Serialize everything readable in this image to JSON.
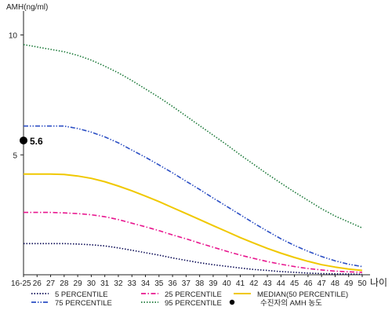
{
  "chart_data": {
    "type": "line",
    "ylabel": "AMH(ng/ml)",
    "xlabel": "나이",
    "ylim": [
      0,
      11
    ],
    "yticks": [
      5,
      10
    ],
    "categories": [
      "16-25",
      "26",
      "27",
      "28",
      "29",
      "30",
      "31",
      "32",
      "33",
      "34",
      "35",
      "36",
      "37",
      "38",
      "39",
      "40",
      "41",
      "42",
      "43",
      "44",
      "45",
      "46",
      "47",
      "48",
      "49",
      "50"
    ],
    "series": [
      {
        "name": "5 PERCENTILE",
        "color": "#0a0a55",
        "dash": "dot",
        "values": [
          1.3,
          1.3,
          1.3,
          1.3,
          1.28,
          1.25,
          1.2,
          1.12,
          1.02,
          0.92,
          0.82,
          0.7,
          0.6,
          0.5,
          0.42,
          0.35,
          0.28,
          0.22,
          0.18,
          0.13,
          0.1,
          0.07,
          0.05,
          0.04,
          0.03,
          0.02
        ]
      },
      {
        "name": "25 PERCENTILE",
        "color": "#e8178f",
        "dash": "dashdot",
        "values": [
          2.6,
          2.6,
          2.6,
          2.58,
          2.55,
          2.5,
          2.42,
          2.3,
          2.15,
          2.0,
          1.84,
          1.66,
          1.5,
          1.32,
          1.15,
          0.98,
          0.82,
          0.68,
          0.55,
          0.44,
          0.34,
          0.26,
          0.2,
          0.15,
          0.12,
          0.1
        ]
      },
      {
        "name": "MEDIAN(50 PERCENTILE)",
        "color": "#f0c800",
        "dash": "solid",
        "values": [
          4.2,
          4.2,
          4.2,
          4.18,
          4.12,
          4.02,
          3.88,
          3.7,
          3.5,
          3.28,
          3.05,
          2.8,
          2.55,
          2.3,
          2.05,
          1.8,
          1.55,
          1.32,
          1.1,
          0.9,
          0.72,
          0.56,
          0.42,
          0.32,
          0.24,
          0.18
        ]
      },
      {
        "name": "75 PERCENTILE",
        "color": "#2c4fc4",
        "dash": "dashdotdot",
        "values": [
          6.2,
          6.2,
          6.2,
          6.2,
          6.1,
          5.95,
          5.75,
          5.5,
          5.2,
          4.9,
          4.58,
          4.25,
          3.9,
          3.56,
          3.2,
          2.85,
          2.5,
          2.15,
          1.82,
          1.5,
          1.22,
          0.98,
          0.76,
          0.58,
          0.44,
          0.34
        ]
      },
      {
        "name": "95 PERCENTILE",
        "color": "#1d7a3a",
        "dash": "dot",
        "values": [
          9.6,
          9.5,
          9.4,
          9.3,
          9.15,
          8.95,
          8.7,
          8.42,
          8.1,
          7.75,
          7.4,
          7.02,
          6.62,
          6.22,
          5.82,
          5.42,
          5.0,
          4.6,
          4.2,
          3.82,
          3.45,
          3.1,
          2.75,
          2.45,
          2.2,
          1.95
        ]
      }
    ],
    "point": {
      "category": "16-25",
      "value": 5.6,
      "label": "5.6",
      "color": "#000000"
    },
    "legend": [
      {
        "series": 0,
        "text": "5 PERCENTILE"
      },
      {
        "series": 1,
        "text": "25 PERCENTILE"
      },
      {
        "series": 2,
        "text": "MEDIAN(50 PERCENTILE)"
      },
      {
        "series": 3,
        "text": "75 PERCENTILE"
      },
      {
        "series": 4,
        "text": "95 PERCENTILE"
      },
      {
        "point": true,
        "text": "수진자의 AMH 농도"
      }
    ],
    "legend_position": "bottom"
  }
}
